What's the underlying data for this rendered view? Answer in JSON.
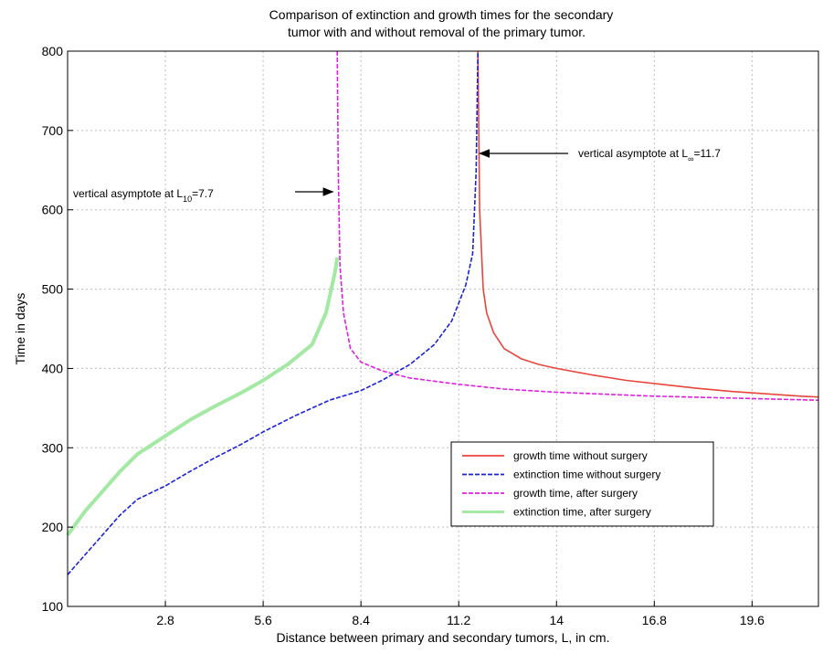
{
  "chart_data": {
    "type": "line",
    "title": [
      "Comparison of extinction and growth times for the secondary",
      "tumor with and without removal of the primary tumor."
    ],
    "xlabel": "Distance between primary and secondary tumors, L, in cm.",
    "ylabel": "Time in days",
    "xlim": [
      0,
      21.5
    ],
    "ylim": [
      100,
      800
    ],
    "xticks": [
      2.8,
      5.6,
      8.4,
      11.2,
      14,
      16.8,
      19.6
    ],
    "xtick_labels": [
      "2.8",
      "5.6",
      "8.4",
      "11.2",
      "14",
      "16.8",
      "19.6"
    ],
    "yticks": [
      100,
      200,
      300,
      400,
      500,
      600,
      700,
      800
    ],
    "ytick_labels": [
      "100",
      "200",
      "300",
      "400",
      "500",
      "600",
      "700",
      "800"
    ],
    "grid": true,
    "legend_position": "lower-right",
    "series": [
      {
        "name": "growth time without surgery",
        "color": "#e8463c",
        "style": "solid",
        "x": [
          11.75,
          11.8,
          11.9,
          12.0,
          12.2,
          12.5,
          13.0,
          13.5,
          14.0,
          15.0,
          16.0,
          17.0,
          18.0,
          19.0,
          20.0,
          21.0,
          21.5
        ],
        "y": [
          800,
          600,
          500,
          470,
          445,
          425,
          412,
          405,
          400,
          392,
          385,
          380,
          375,
          371,
          368,
          365,
          364
        ]
      },
      {
        "name": "extinction time without surgery",
        "color": "#1a22d6",
        "style": "dashed",
        "x": [
          0.0,
          0.5,
          1.0,
          1.5,
          2.0,
          2.8,
          3.5,
          4.2,
          5.0,
          5.6,
          6.5,
          7.5,
          8.4,
          9.0,
          9.8,
          10.5,
          11.0,
          11.4,
          11.6,
          11.7,
          11.75
        ],
        "y": [
          140,
          165,
          190,
          215,
          235,
          252,
          270,
          287,
          305,
          320,
          340,
          360,
          372,
          385,
          405,
          430,
          460,
          505,
          545,
          650,
          800
        ]
      },
      {
        "name": "growth time, after surgery",
        "color": "#e020e0",
        "style": "dashed",
        "x": [
          7.72,
          7.75,
          7.8,
          7.9,
          8.1,
          8.4,
          9.0,
          9.8,
          11.2,
          12.5,
          14.0,
          16.8,
          19.6,
          21.5
        ],
        "y": [
          800,
          650,
          530,
          470,
          425,
          408,
          397,
          388,
          380,
          374,
          370,
          365,
          362,
          360
        ]
      },
      {
        "name": "extinction time, after surgery",
        "color": "#a3e8a3",
        "style": "solid",
        "x": [
          0.0,
          0.5,
          1.0,
          1.5,
          2.0,
          2.8,
          3.5,
          4.2,
          5.0,
          5.6,
          6.3,
          7.0,
          7.4,
          7.65,
          7.72
        ],
        "y": [
          190,
          220,
          245,
          270,
          292,
          315,
          335,
          352,
          370,
          385,
          405,
          430,
          470,
          520,
          540
        ]
      }
    ],
    "annotations": [
      {
        "text_prefix": "vertical asymptote at L",
        "subscript": "10",
        "text_suffix": "=7.7",
        "points_to_x": 7.7,
        "points_to_y": 610
      },
      {
        "text_prefix": "vertical asymptote at L",
        "subscript": "∞",
        "text_suffix": "=11.7",
        "points_to_x": 11.7,
        "points_to_y": 670
      }
    ]
  }
}
